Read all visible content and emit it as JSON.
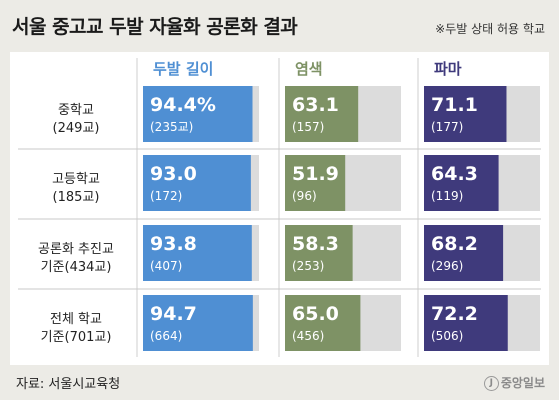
{
  "title": "서울 중고교 두발 자율화 공론화 결과",
  "note": "※두발 상태 허용 학교",
  "source": "자료: 서울시교육청",
  "logo_text": "중앙일보",
  "chart_data": {
    "type": "bar",
    "title": "서울 중고교 두발 자율화 공론화 결과",
    "value_unit": "%",
    "xlim": [
      0,
      100
    ],
    "categories": [
      [
        "중학교",
        "(249교)"
      ],
      [
        "고등학교",
        "(185교)"
      ],
      [
        "공론화 추진교",
        "기준(434교)"
      ],
      [
        "전체 학교",
        "기준(701교)"
      ]
    ],
    "series": [
      {
        "name": "두발 길이",
        "color": "#4f8fd3",
        "values": [
          94.4,
          93.0,
          93.8,
          94.7
        ],
        "value_labels": [
          "94.4%",
          "93.0",
          "93.8",
          "94.7"
        ],
        "counts": [
          "(235교)",
          "(172)",
          "(407)",
          "(664)"
        ]
      },
      {
        "name": "염색",
        "color": "#7e9265",
        "values": [
          63.1,
          51.9,
          58.3,
          65.0
        ],
        "value_labels": [
          "63.1",
          "51.9",
          "58.3",
          "65.0"
        ],
        "counts": [
          "(157)",
          "(96)",
          "(253)",
          "(456)"
        ]
      },
      {
        "name": "파마",
        "color": "#3f3a7c",
        "values": [
          71.1,
          64.3,
          68.2,
          72.2
        ],
        "value_labels": [
          "71.1",
          "64.3",
          "68.2",
          "72.2"
        ],
        "counts": [
          "(177)",
          "(119)",
          "(296)",
          "(506)"
        ]
      }
    ]
  }
}
